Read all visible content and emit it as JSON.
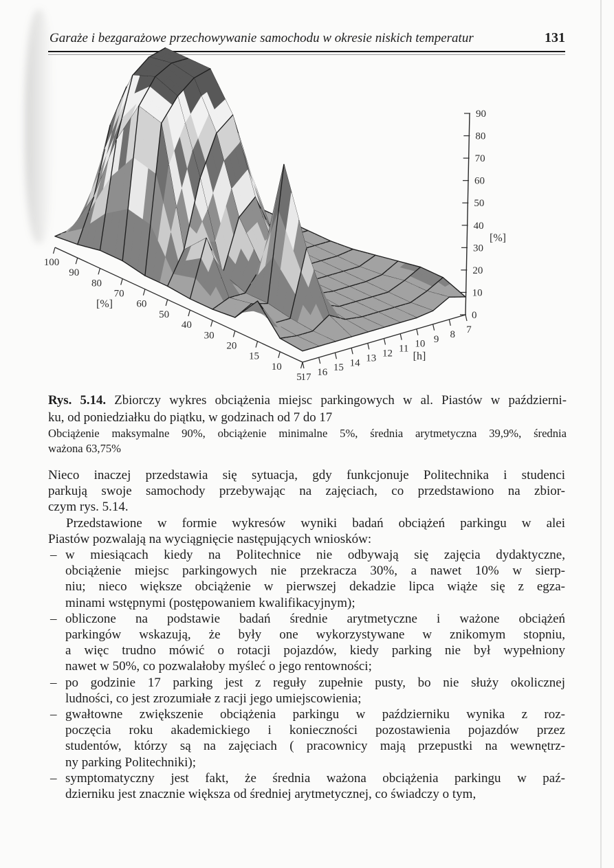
{
  "page": {
    "header": {
      "title": "Garaże i bezgarażowe przechowywanie samochodu w okresie niskich temperatur",
      "page_number": "131"
    },
    "figure_caption": {
      "label": "Rys. 5.14.",
      "line1_rest": " Zbiorczy wykres obciążenia miejsc parkingowych w al. Piastów w październi-",
      "line2": "ku, od poniedziałku do piątku, w godzinach od 7 do 17",
      "line3": "Obciążenie maksymalne 90%, obciążenie minimalne 5%, średnia arytmetyczna 39,9%, średnia",
      "line4": "ważona 63,75%"
    },
    "body": {
      "bullet_marker": "–",
      "paragraphs": [
        {
          "indent": false,
          "lines": [
            "Nieco inaczej przedstawia się sytuacja, gdy funkcjonuje Politechnika i studenci",
            "parkują swoje samochody przebywając na zajęciach, co przedstawiono na zbior-",
            "czym rys. 5.14."
          ]
        },
        {
          "indent": true,
          "lines": [
            "Przedstawione w formie wykresów wyniki badań obciążeń parkingu w alei",
            "Piastów pozwalają na wyciągnięcie następujących wniosków:"
          ]
        }
      ],
      "bullets": [
        {
          "lines": [
            "w miesiącach kiedy na Politechnice nie odbywają się zajęcia dydaktyczne,",
            "obciążenie miejsc parkingowych nie przekracza 30%, a nawet 10% w sierp-",
            "niu; nieco większe obciążenie w pierwszej dekadzie lipca wiąże się z egza-",
            "minami wstępnymi (postępowaniem kwalifikacyjnym);"
          ]
        },
        {
          "lines": [
            "obliczone na podstawie badań średnie arytmetyczne i ważone obciążeń",
            "parkingów wskazują, że były one wykorzystywane w znikomym stopniu,",
            "a więc trudno mówić o rotacji pojazdów, kiedy parking nie był wypełniony",
            "nawet w 50%, co pozwalałoby myśleć o jego rentowności;"
          ]
        },
        {
          "lines": [
            "po godzinie 17 parking jest z reguły zupełnie pusty, bo nie służy okolicznej",
            "ludności, co jest zrozumiałe z racji jego umiejscowienia;"
          ]
        },
        {
          "lines": [
            "gwałtowne zwiększenie obciążenia parkingu w październiku wynika z roz-",
            "poczęcia roku akademickiego i konieczności pozostawienia pojazdów przez",
            "studentów, którzy są na zajęciach ( pracownicy mają przepustki na wewnętrz-",
            "ny parking Politechniki);"
          ]
        },
        {
          "lines": [
            "symptomatyczny jest fakt, że średnia ważona obciążenia parkingu w paź-",
            "dzierniku jest znacznie większa od średniej arytmetycznej, co świadczy o tym,"
          ]
        }
      ]
    }
  },
  "chart_data": {
    "type": "surface",
    "x_axis": {
      "title": "[h]",
      "ticks": [
        "17",
        "16",
        "15",
        "14",
        "13",
        "12",
        "11",
        "10",
        "9",
        "8",
        "7"
      ]
    },
    "depth_axis": {
      "title": "[%]",
      "ticks": [
        "100",
        "90",
        "80",
        "70",
        "60",
        "50",
        "40",
        "30",
        "20",
        "15",
        "10",
        "5"
      ]
    },
    "z_axis": {
      "title": "[%]",
      "ticks": [
        "0",
        "10",
        "20",
        "30",
        "40",
        "50",
        "60",
        "70",
        "80",
        "90"
      ],
      "range": [
        0,
        90
      ]
    },
    "units": "%",
    "z_values_rows_depth_cols_hours": [
      [
        5,
        6,
        10,
        14,
        15,
        12,
        6,
        5,
        5,
        5,
        5
      ],
      [
        6,
        25,
        55,
        70,
        72,
        45,
        12,
        5,
        5,
        5,
        5
      ],
      [
        8,
        55,
        82,
        88,
        90,
        65,
        20,
        6,
        5,
        5,
        5
      ],
      [
        8,
        75,
        86,
        90,
        90,
        70,
        25,
        6,
        5,
        5,
        5
      ],
      [
        6,
        72,
        82,
        88,
        90,
        66,
        22,
        6,
        5,
        5,
        5
      ],
      [
        6,
        20,
        50,
        68,
        74,
        48,
        15,
        5,
        5,
        5,
        5
      ],
      [
        5,
        30,
        12,
        35,
        42,
        25,
        8,
        5,
        5,
        5,
        6
      ],
      [
        5,
        8,
        8,
        18,
        20,
        10,
        5,
        5,
        5,
        5,
        8
      ],
      [
        6,
        10,
        8,
        68,
        12,
        6,
        5,
        5,
        5,
        6,
        10
      ],
      [
        18,
        6,
        6,
        35,
        8,
        5,
        5,
        5,
        5,
        8,
        12
      ],
      [
        6,
        5,
        5,
        10,
        6,
        5,
        5,
        5,
        5,
        8,
        12
      ],
      [
        5,
        5,
        5,
        5,
        5,
        5,
        5,
        5,
        6,
        10,
        8
      ]
    ],
    "stats": {
      "max_percent": 90,
      "min_percent": 5,
      "arithmetic_mean_percent": 39.9,
      "weighted_mean_percent": 63.75
    }
  }
}
